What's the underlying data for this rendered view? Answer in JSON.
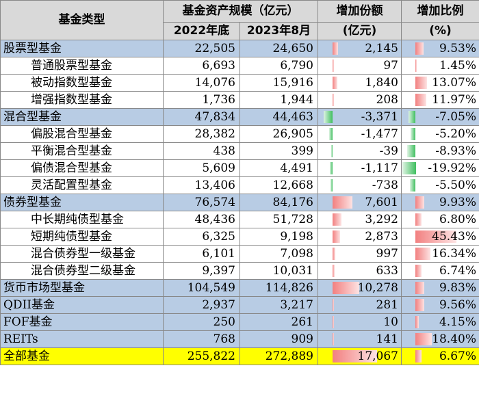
{
  "headers": {
    "type": "基金类型",
    "scale": "基金资产规模（亿元）",
    "end2022": "2022年底",
    "aug2023": "2023年8月",
    "inc_amt_l1": "增加份额",
    "inc_amt_l2": "(亿元)",
    "inc_pct_l1": "增加比例",
    "inc_pct_l2": "(%)"
  },
  "rows": [
    {
      "name": "股票型基金",
      "level": "cat",
      "v2022": "22,505",
      "v2023": "24,650",
      "inc": "2,145",
      "inc_val": 2145,
      "pct": "9.53%",
      "pct_val": 9.53
    },
    {
      "name": "普通股票型基金",
      "level": "sub",
      "v2022": "6,693",
      "v2023": "6,790",
      "inc": "97",
      "inc_val": 97,
      "pct": "1.45%",
      "pct_val": 1.45
    },
    {
      "name": "被动指数型基金",
      "level": "sub",
      "v2022": "14,076",
      "v2023": "15,916",
      "inc": "1,840",
      "inc_val": 1840,
      "pct": "13.07%",
      "pct_val": 13.07
    },
    {
      "name": "增强指数型基金",
      "level": "sub",
      "v2022": "1,736",
      "v2023": "1,944",
      "inc": "208",
      "inc_val": 208,
      "pct": "11.97%",
      "pct_val": 11.97
    },
    {
      "name": "混合型基金",
      "level": "cat",
      "v2022": "47,834",
      "v2023": "44,463",
      "inc": "-3,371",
      "inc_val": -3371,
      "pct": "-7.05%",
      "pct_val": -7.05
    },
    {
      "name": "偏股混合型基金",
      "level": "sub",
      "v2022": "28,382",
      "v2023": "26,905",
      "inc": "-1,477",
      "inc_val": -1477,
      "pct": "-5.20%",
      "pct_val": -5.2
    },
    {
      "name": "平衡混合型基金",
      "level": "sub",
      "v2022": "438",
      "v2023": "399",
      "inc": "-39",
      "inc_val": -39,
      "pct": "-8.93%",
      "pct_val": -8.93
    },
    {
      "name": "偏债混合型基金",
      "level": "sub",
      "v2022": "5,609",
      "v2023": "4,491",
      "inc": "-1,117",
      "inc_val": -1117,
      "pct": "-19.92%",
      "pct_val": -19.92
    },
    {
      "name": "灵活配置型基金",
      "level": "sub",
      "v2022": "13,406",
      "v2023": "12,668",
      "inc": "-738",
      "inc_val": -738,
      "pct": "-5.50%",
      "pct_val": -5.5
    },
    {
      "name": "债券型基金",
      "level": "cat",
      "v2022": "76,574",
      "v2023": "84,176",
      "inc": "7,601",
      "inc_val": 7601,
      "pct": "9.93%",
      "pct_val": 9.93
    },
    {
      "name": "中长期纯债型基金",
      "level": "sub",
      "v2022": "48,436",
      "v2023": "51,728",
      "inc": "3,292",
      "inc_val": 3292,
      "pct": "6.80%",
      "pct_val": 6.8
    },
    {
      "name": "短期纯债型基金",
      "level": "sub",
      "v2022": "6,325",
      "v2023": "9,198",
      "inc": "2,873",
      "inc_val": 2873,
      "pct": "45.43%",
      "pct_val": 45.43
    },
    {
      "name": "混合债券型一级基金",
      "level": "sub",
      "v2022": "6,101",
      "v2023": "7,098",
      "inc": "997",
      "inc_val": 997,
      "pct": "16.34%",
      "pct_val": 16.34
    },
    {
      "name": "混合债券型二级基金",
      "level": "sub",
      "v2022": "9,397",
      "v2023": "10,031",
      "inc": "633",
      "inc_val": 633,
      "pct": "6.74%",
      "pct_val": 6.74
    },
    {
      "name": "货币市场型基金",
      "level": "cat",
      "v2022": "104,549",
      "v2023": "114,826",
      "inc": "10,278",
      "inc_val": 10278,
      "pct": "9.83%",
      "pct_val": 9.83
    },
    {
      "name": "QDII基金",
      "level": "cat",
      "v2022": "2,937",
      "v2023": "3,217",
      "inc": "281",
      "inc_val": 281,
      "pct": "9.56%",
      "pct_val": 9.56
    },
    {
      "name": "FOF基金",
      "level": "cat",
      "v2022": "250",
      "v2023": "261",
      "inc": "10",
      "inc_val": 10,
      "pct": "4.15%",
      "pct_val": 4.15
    },
    {
      "name": "REITs",
      "level": "cat",
      "v2022": "768",
      "v2023": "909",
      "inc": "141",
      "inc_val": 141,
      "pct": "18.40%",
      "pct_val": 18.4
    },
    {
      "name": "全部基金",
      "level": "total",
      "v2022": "255,822",
      "v2023": "272,889",
      "inc": "17,067",
      "inc_val": 17067,
      "pct": "6.67%",
      "pct_val": 6.67
    }
  ],
  "colors": {
    "category_bg": "#b8cce4",
    "total_bg": "#ffff00",
    "header_bg": "#d9d9d9",
    "pos_bar": "#f28080",
    "neg_bar": "#3fbf5f"
  }
}
